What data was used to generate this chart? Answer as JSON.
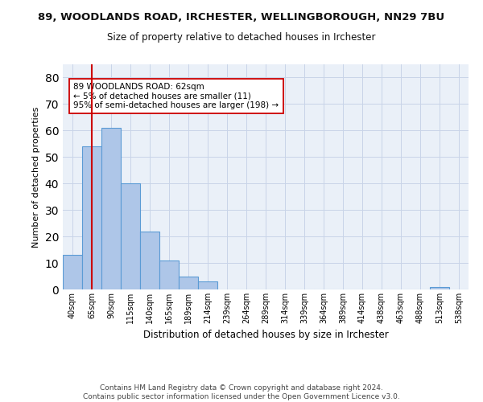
{
  "title": "89, WOODLANDS ROAD, IRCHESTER, WELLINGBOROUGH, NN29 7BU",
  "subtitle": "Size of property relative to detached houses in Irchester",
  "xlabel": "Distribution of detached houses by size in Irchester",
  "ylabel": "Number of detached properties",
  "bin_labels": [
    "40sqm",
    "65sqm",
    "90sqm",
    "115sqm",
    "140sqm",
    "165sqm",
    "189sqm",
    "214sqm",
    "239sqm",
    "264sqm",
    "289sqm",
    "314sqm",
    "339sqm",
    "364sqm",
    "389sqm",
    "414sqm",
    "438sqm",
    "463sqm",
    "488sqm",
    "513sqm",
    "538sqm"
  ],
  "bar_values": [
    13,
    54,
    61,
    40,
    22,
    11,
    5,
    3,
    0,
    0,
    0,
    0,
    0,
    0,
    0,
    0,
    0,
    0,
    0,
    1,
    0
  ],
  "bar_color": "#aec6e8",
  "bar_edge_color": "#5b9bd5",
  "vline_x": 1.0,
  "vline_color": "#cc0000",
  "annotation_text": "89 WOODLANDS ROAD: 62sqm\n← 5% of detached houses are smaller (11)\n95% of semi-detached houses are larger (198) →",
  "annotation_box_color": "#ffffff",
  "annotation_box_edge": "#cc0000",
  "ylim": [
    0,
    85
  ],
  "yticks": [
    0,
    10,
    20,
    30,
    40,
    50,
    60,
    70,
    80
  ],
  "grid_color": "#c8d4e8",
  "bg_color": "#eaf0f8",
  "footer": "Contains HM Land Registry data © Crown copyright and database right 2024.\nContains public sector information licensed under the Open Government Licence v3.0."
}
